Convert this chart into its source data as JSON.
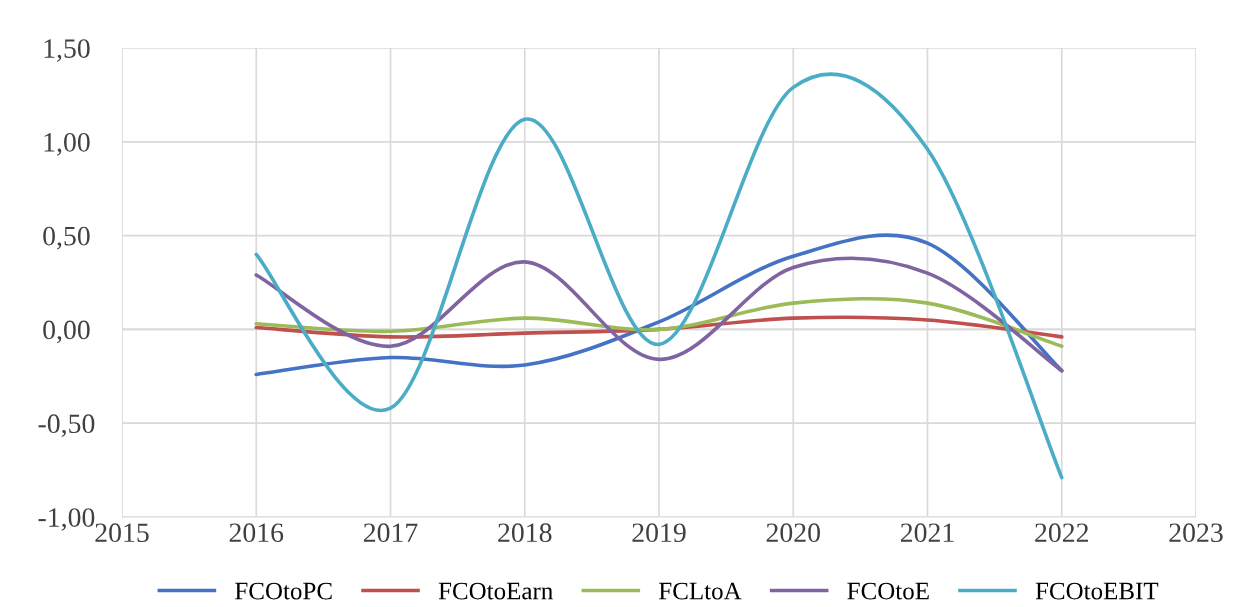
{
  "chart_data": {
    "type": "line",
    "x": [
      2016,
      2017,
      2018,
      2019,
      2020,
      2021,
      2022
    ],
    "series": [
      {
        "name": "FCOtoPC",
        "color": "#4472c4",
        "values": [
          -0.24,
          -0.15,
          -0.19,
          0.04,
          0.39,
          0.46,
          -0.22
        ]
      },
      {
        "name": "FCOtoEarn",
        "color": "#c0504d",
        "values": [
          0.01,
          -0.04,
          -0.02,
          0.0,
          0.06,
          0.05,
          -0.04
        ]
      },
      {
        "name": "FCLtoA",
        "color": "#9bbb59",
        "values": [
          0.03,
          -0.01,
          0.06,
          0.0,
          0.14,
          0.14,
          -0.09
        ]
      },
      {
        "name": "FCOtoE",
        "color": "#8064a2",
        "values": [
          0.29,
          -0.09,
          0.36,
          -0.16,
          0.33,
          0.3,
          -0.22
        ]
      },
      {
        "name": "FCOtoEBIT",
        "color": "#4bacc6",
        "values": [
          0.4,
          -0.42,
          1.12,
          -0.08,
          1.29,
          0.96,
          -0.79
        ]
      }
    ],
    "xlim": [
      2015,
      2023
    ],
    "xticks": [
      2015,
      2016,
      2017,
      2018,
      2019,
      2020,
      2021,
      2022,
      2023
    ],
    "ylim": [
      -1.0,
      1.5
    ],
    "yticks": [
      {
        "value": -1.0,
        "label": "-1,00"
      },
      {
        "value": -0.5,
        "label": "-0,50"
      },
      {
        "value": 0.0,
        "label": "0,00"
      },
      {
        "value": 0.5,
        "label": "0,50"
      },
      {
        "value": 1.0,
        "label": "1,00"
      },
      {
        "value": 1.5,
        "label": "1,50"
      }
    ],
    "grid": true,
    "legend": "bottom",
    "line_style": "solid",
    "marker": "none"
  }
}
